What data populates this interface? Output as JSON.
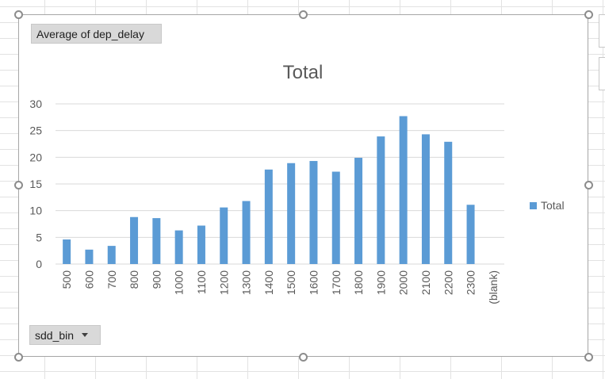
{
  "field_buttons": {
    "values_field": "Average of dep_delay",
    "axis_field": "sdd_bin"
  },
  "colors": {
    "bar": "#5b9bd5",
    "gridline": "#d9d9d9",
    "axis_text": "#595959",
    "title_text": "#595959"
  },
  "chart_data": {
    "type": "bar",
    "title": "Total",
    "xlabel": "",
    "ylabel": "",
    "legend_position": "right",
    "grid": true,
    "ylim": [
      0,
      30
    ],
    "yticks": [
      0,
      5,
      10,
      15,
      20,
      25,
      30
    ],
    "categories": [
      "500",
      "600",
      "700",
      "800",
      "900",
      "1000",
      "1100",
      "1200",
      "1300",
      "1400",
      "1500",
      "1600",
      "1700",
      "1800",
      "1900",
      "2000",
      "2100",
      "2200",
      "2300",
      "(blank)"
    ],
    "series": [
      {
        "name": "Total",
        "values": [
          4.6,
          2.7,
          3.4,
          8.8,
          8.6,
          6.3,
          7.2,
          10.6,
          11.8,
          17.7,
          18.9,
          19.3,
          17.3,
          19.9,
          23.9,
          27.7,
          24.3,
          22.9,
          11.1,
          null
        ]
      }
    ]
  }
}
